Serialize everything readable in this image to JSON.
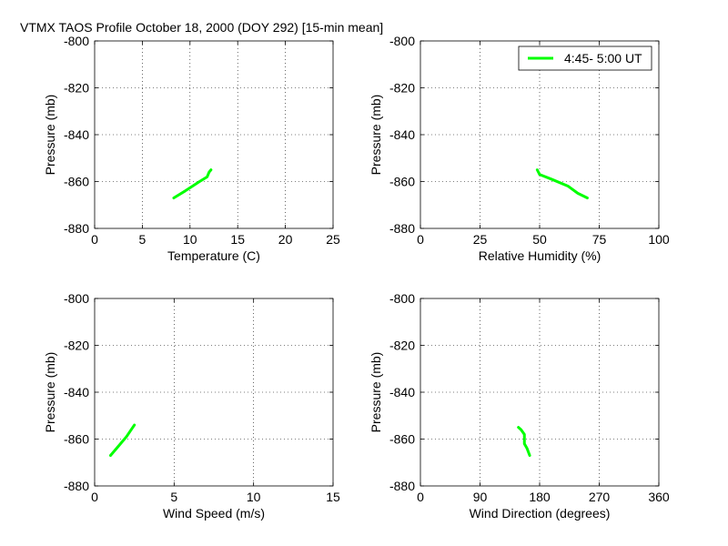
{
  "figure": {
    "title": "VTMX TAOS Profile   October 18, 2000 (DOY 292) [15-min mean]"
  },
  "chart_data": [
    {
      "type": "line",
      "xlabel": "Temperature (C)",
      "ylabel": "Pressure (mb)",
      "xlim": [
        0,
        25
      ],
      "ylim": [
        -880,
        -800
      ],
      "xticks": [
        0,
        5,
        10,
        15,
        20,
        25
      ],
      "xtick_labels": [
        "0",
        "5",
        "10",
        "15",
        "20",
        "25"
      ],
      "yticks": [
        -800,
        -820,
        -840,
        -860,
        -880
      ],
      "ytick_labels": [
        "-800",
        "-820",
        "-840",
        "-860",
        "-880"
      ],
      "grid": true,
      "series": [
        {
          "name": "4:45- 5:00 UT",
          "color": "#00ff00",
          "x": [
            8.3,
            9.5,
            11.0,
            11.8,
            12.0,
            12.2
          ],
          "y": [
            -867,
            -864,
            -860,
            -858,
            -856,
            -855
          ]
        }
      ]
    },
    {
      "type": "line",
      "xlabel": "Relative Humidity (%)",
      "ylabel": "Pressure (mb)",
      "xlim": [
        0,
        100
      ],
      "ylim": [
        -880,
        -800
      ],
      "xticks": [
        0,
        25,
        50,
        75,
        100
      ],
      "xtick_labels": [
        "0",
        "25",
        "50",
        "75",
        "100"
      ],
      "yticks": [
        -800,
        -820,
        -840,
        -860,
        -880
      ],
      "ytick_labels": [
        "-800",
        "-820",
        "-840",
        "-860",
        "-880"
      ],
      "grid": true,
      "legend": {
        "position": "top-right",
        "entries": [
          "4:45- 5:00 UT"
        ]
      },
      "series": [
        {
          "name": "4:45- 5:00 UT",
          "color": "#00ff00",
          "x": [
            49,
            50,
            55,
            62,
            66,
            70
          ],
          "y": [
            -855,
            -857,
            -859,
            -862,
            -865,
            -867
          ]
        }
      ]
    },
    {
      "type": "line",
      "xlabel": "Wind Speed (m/s)",
      "ylabel": "Pressure (mb)",
      "xlim": [
        0,
        15
      ],
      "ylim": [
        -880,
        -800
      ],
      "xticks": [
        0,
        5,
        10,
        15
      ],
      "xtick_labels": [
        "0",
        "5",
        "10",
        "15"
      ],
      "yticks": [
        -800,
        -820,
        -840,
        -860,
        -880
      ],
      "ytick_labels": [
        "-800",
        "-820",
        "-840",
        "-860",
        "-880"
      ],
      "grid": true,
      "series": [
        {
          "name": "4:45- 5:00 UT",
          "color": "#00ff00",
          "x": [
            1.0,
            1.5,
            2.0,
            2.3,
            2.5
          ],
          "y": [
            -867,
            -863,
            -859,
            -856,
            -854
          ]
        }
      ]
    },
    {
      "type": "line",
      "xlabel": "Wind Direction (degrees)",
      "ylabel": "Pressure (mb)",
      "xlim": [
        0,
        360
      ],
      "ylim": [
        -880,
        -800
      ],
      "xticks": [
        0,
        90,
        180,
        270,
        360
      ],
      "xtick_labels": [
        "0",
        "90",
        "180",
        "270",
        "360"
      ],
      "yticks": [
        -800,
        -820,
        -840,
        -860,
        -880
      ],
      "ytick_labels": [
        "-800",
        "-820",
        "-840",
        "-860",
        "-880"
      ],
      "grid": true,
      "series": [
        {
          "name": "4:45- 5:00 UT",
          "color": "#00ff00",
          "x": [
            148,
            152,
            157,
            157,
            161,
            165
          ],
          "y": [
            -855,
            -856,
            -858,
            -862,
            -864,
            -867
          ]
        }
      ]
    }
  ]
}
